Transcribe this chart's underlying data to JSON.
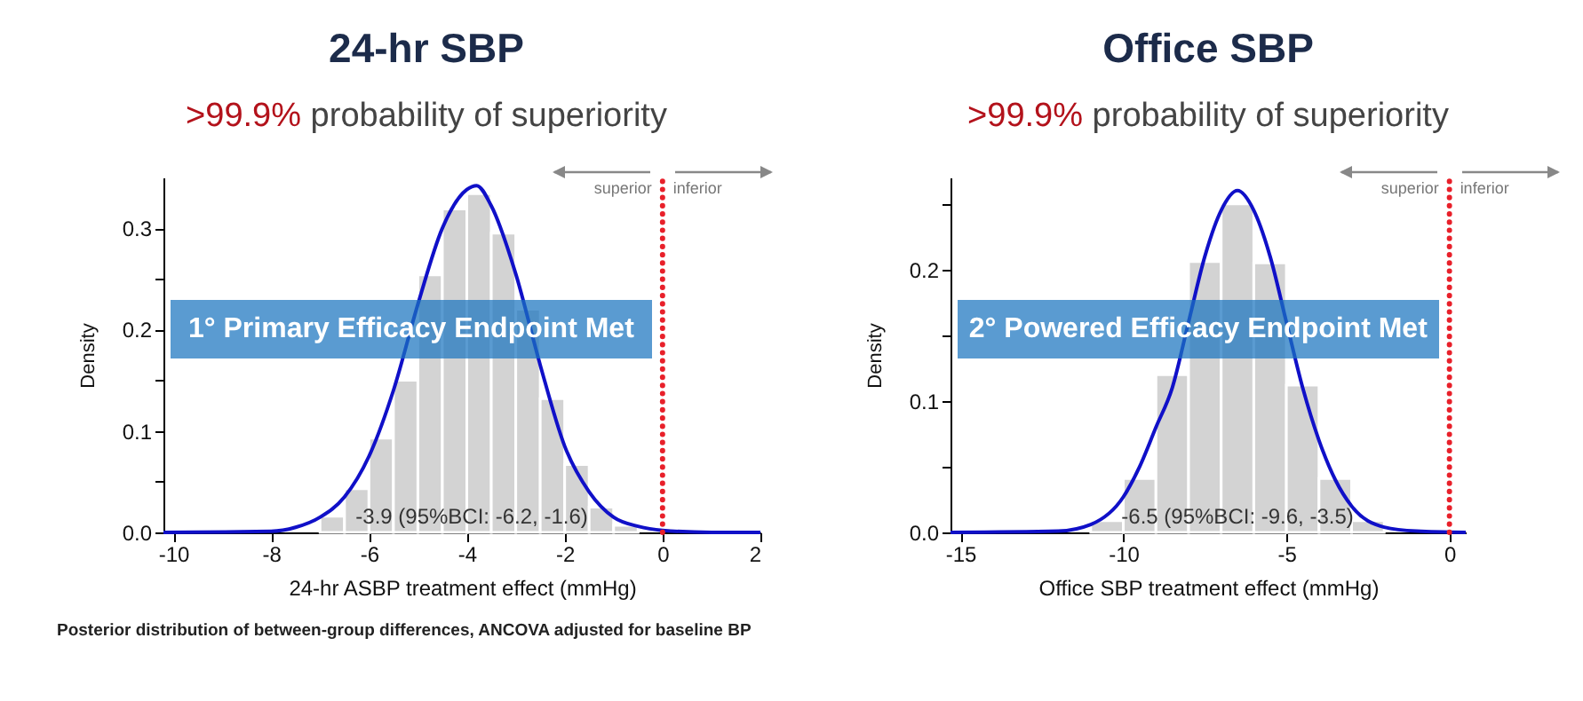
{
  "chart_data": [
    {
      "type": "histogram",
      "title": "24-hr SBP",
      "subtitle": ">99.9% probability of superiority",
      "xlabel": "24-hr ASBP treatment effect (mmHg)",
      "ylabel": "Density",
      "xlim": [
        -10.2,
        2
      ],
      "xticks": [
        -10,
        -8,
        -6,
        -4,
        -2,
        0,
        2
      ],
      "ylim": [
        0,
        0.35
      ],
      "yticks": [
        {
          "value": 0,
          "label": "0.0"
        },
        {
          "value": 0.05,
          "label": null
        },
        0.1,
        {
          "value": 0.15,
          "label": null
        },
        0.2,
        {
          "value": 0.25,
          "label": null
        },
        0.3
      ],
      "series": [
        {
          "type": "histogram",
          "color": "#d3d3d3",
          "bins": [
            -7,
            -6.5,
            -6,
            -5.5,
            -5,
            -4.5,
            -4,
            -3.5,
            -3,
            -2.5,
            -2,
            -1.5,
            -1,
            -0.5
          ],
          "values": [
            0.016,
            0.043,
            0.093,
            0.15,
            0.254,
            0.319,
            0.334,
            0.295,
            0.22,
            0.132,
            0.067,
            0.025,
            0.007
          ]
        },
        {
          "type": "line",
          "color": "#1010c8",
          "x": [
            -10.2,
            -8,
            -7.5,
            -7,
            -6.5,
            -6,
            -5.5,
            -5,
            -4.5,
            -4,
            -3.8,
            -3.5,
            -3,
            -2.5,
            -2,
            -1.5,
            -1,
            -0.5,
            0,
            1,
            2
          ],
          "values": [
            0,
            0.001,
            0.005,
            0.015,
            0.035,
            0.075,
            0.14,
            0.225,
            0.3,
            0.338,
            0.342,
            0.322,
            0.255,
            0.165,
            0.085,
            0.04,
            0.015,
            0.006,
            0.002,
            0,
            0
          ]
        }
      ],
      "ref_lines": [
        {
          "axis": "x",
          "value": 0,
          "color": "#e8202a",
          "line_style": "dotted"
        }
      ],
      "annotations": [
        "1° Primary Efficacy Endpoint Met",
        "superior",
        "inferior",
        {
          "text": "-3.9 (95%BCI: -6.2, -1.6)",
          "x": -3.9,
          "y": 0
        },
        "Posterior distribution of between-group differences, ANCOVA adjusted for baseline BP"
      ]
    },
    {
      "type": "histogram",
      "title": "Office SBP",
      "subtitle": ">99.9% probability of superiority",
      "xlabel": "Office SBP treatment effect (mmHg)",
      "ylabel": "Density",
      "xlim": [
        -15.3,
        0.5
      ],
      "xticks": [
        -15,
        -10,
        -5,
        0
      ],
      "ylim": [
        0,
        0.27
      ],
      "yticks": [
        {
          "value": 0,
          "label": "0.0"
        },
        {
          "value": 0.05,
          "label": null
        },
        0.1,
        {
          "value": 0.15,
          "label": null
        },
        0.2,
        {
          "value": 0.25,
          "label": null
        }
      ],
      "series": [
        {
          "type": "histogram",
          "color": "#d3d3d3",
          "bins": [
            -11,
            -10,
            -9,
            -8,
            -7,
            -6,
            -5,
            -4,
            -3,
            -2
          ],
          "values": [
            0.009,
            0.041,
            0.12,
            0.206,
            0.25,
            0.205,
            0.112,
            0.041,
            0.009
          ]
        },
        {
          "type": "line",
          "color": "#1010c8",
          "x": [
            -15.3,
            -12,
            -11,
            -10,
            -9.5,
            -9,
            -8.5,
            -8,
            -7.5,
            -7,
            -6.5,
            -6,
            -5.5,
            -5,
            -4.5,
            -4,
            -3.5,
            -3,
            -2,
            -1,
            0.5
          ],
          "values": [
            0,
            0.001,
            0.006,
            0.027,
            0.05,
            0.08,
            0.11,
            0.16,
            0.21,
            0.245,
            0.26,
            0.245,
            0.21,
            0.16,
            0.11,
            0.07,
            0.04,
            0.02,
            0.004,
            0.001,
            0
          ]
        }
      ],
      "ref_lines": [
        {
          "axis": "x",
          "value": 0,
          "color": "#e8202a",
          "line_style": "dotted"
        }
      ],
      "annotations": [
        "2° Powered Efficacy Endpoint Met",
        "superior",
        "inferior",
        {
          "text": "-6.5 (95%BCI: -9.6, -3.5)",
          "x": -6.5,
          "y": 0
        }
      ]
    }
  ]
}
